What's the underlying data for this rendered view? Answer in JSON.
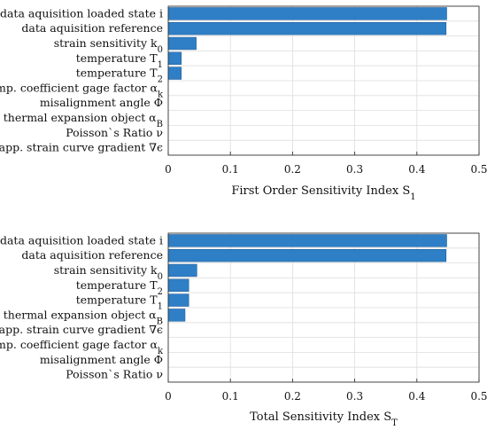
{
  "chart_data": [
    {
      "type": "bar",
      "orientation": "horizontal",
      "xlabel": "First Order Sensitivity Index S",
      "xlabel_sub": "1",
      "xlim": [
        0,
        0.5
      ],
      "xticks": [
        "0",
        "0.1",
        "0.2",
        "0.3",
        "0.4",
        "0.5"
      ],
      "grid": true,
      "bar_color": "#2f7fc6",
      "categories": [
        {
          "label": "data aquisition loaded state i",
          "sub": "",
          "value": 0.448
        },
        {
          "label": "data aquisition reference",
          "sub": "",
          "value": 0.447
        },
        {
          "label": "strain sensitivity k",
          "sub": "0",
          "value": 0.045
        },
        {
          "label": "temperature T",
          "sub": "1",
          "value": 0.021
        },
        {
          "label": "temperature T",
          "sub": "2",
          "value": 0.021
        },
        {
          "label": "temp. coefficient gage factor α",
          "sub": "k",
          "value": 0
        },
        {
          "label": "misalignment angle Φ",
          "sub": "",
          "value": 0
        },
        {
          "label": "thermal expansion object α",
          "sub": "B",
          "value": 0
        },
        {
          "label": "Poisson`s Ratio ν",
          "sub": "",
          "value": 0
        },
        {
          "label": "app. strain curve gradient ∇ϵ",
          "sub": "",
          "value": 0
        }
      ]
    },
    {
      "type": "bar",
      "orientation": "horizontal",
      "xlabel": "Total Sensitivity Index S",
      "xlabel_sub": "T",
      "xlim": [
        0,
        0.5
      ],
      "xticks": [
        "0",
        "0.1",
        "0.2",
        "0.3",
        "0.4",
        "0.5"
      ],
      "grid": true,
      "bar_color": "#2f7fc6",
      "categories": [
        {
          "label": "data aquisition loaded state i",
          "sub": "",
          "value": 0.448
        },
        {
          "label": "data aquisition reference",
          "sub": "",
          "value": 0.447
        },
        {
          "label": "strain sensitivity k",
          "sub": "0",
          "value": 0.046
        },
        {
          "label": "temperature T",
          "sub": "2",
          "value": 0.033
        },
        {
          "label": "temperature T",
          "sub": "1",
          "value": 0.033
        },
        {
          "label": "thermal expansion object α",
          "sub": "B",
          "value": 0.027
        },
        {
          "label": "app. strain curve gradient ∇ϵ",
          "sub": "",
          "value": 0
        },
        {
          "label": "temp. coefficient gage factor α",
          "sub": "k",
          "value": 0
        },
        {
          "label": "misalignment angle Φ",
          "sub": "",
          "value": 0
        },
        {
          "label": "Poisson`s Ratio ν",
          "sub": "",
          "value": 0
        }
      ]
    }
  ]
}
